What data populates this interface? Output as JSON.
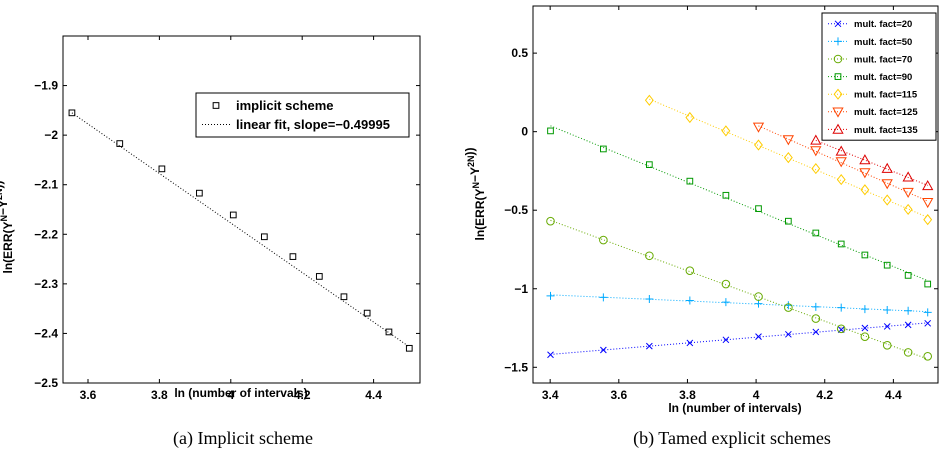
{
  "chart_data": [
    {
      "type": "scatter",
      "caption": "(a) Implicit scheme",
      "xlabel": "ln (number of intervals)",
      "ylabel": "ln(ERR(Y^N−Y^2N))",
      "xlim": [
        3.53,
        4.53
      ],
      "ylim": [
        -2.5,
        -1.8
      ],
      "xticks": [
        3.6,
        3.8,
        4.0,
        4.2,
        4.4
      ],
      "xtick_labels": [
        "3.6",
        "3.8",
        "4",
        "4.2",
        "4.4"
      ],
      "yticks": [
        -2.5,
        -2.4,
        -2.3,
        -2.2,
        -2.1,
        -2.0,
        -1.9
      ],
      "ytick_labels": [
        "−2.5",
        "−2.4",
        "−2.3",
        "−2.2",
        "−2.1",
        "−2",
        "−1.9"
      ],
      "grid": false,
      "legend_position": "top-right",
      "series": [
        {
          "name": "implicit scheme",
          "marker": "square",
          "color": "#000000",
          "line": false,
          "x": [
            3.555,
            3.689,
            3.807,
            3.912,
            4.007,
            4.094,
            4.174,
            4.248,
            4.317,
            4.382,
            4.443,
            4.5
          ],
          "y": [
            -1.955,
            -2.017,
            -2.068,
            -2.117,
            -2.161,
            -2.205,
            -2.245,
            -2.285,
            -2.326,
            -2.359,
            -2.397,
            -2.43
          ]
        },
        {
          "name": "linear fit, slope=−0.49995",
          "marker": "none",
          "color": "#000000",
          "line": "dotted",
          "x": [
            3.555,
            4.5
          ],
          "y": [
            -1.955,
            -2.427
          ]
        }
      ]
    },
    {
      "type": "scatter",
      "caption": "(b) Tamed explicit schemes",
      "xlabel": "ln (number of intervals)",
      "ylabel": "ln(ERR(Y^N−Y^2N))",
      "xlim": [
        3.35,
        4.53
      ],
      "ylim": [
        -1.6,
        0.8
      ],
      "xticks": [
        3.4,
        3.6,
        3.8,
        4.0,
        4.2,
        4.4
      ],
      "xtick_labels": [
        "3.4",
        "3.6",
        "3.8",
        "4",
        "4.2",
        "4.4"
      ],
      "yticks": [
        -1.5,
        -1.0,
        -0.5,
        0.0,
        0.5
      ],
      "ytick_labels": [
        "−1.5",
        "−1",
        "−0.5",
        "0",
        "0.5"
      ],
      "grid": false,
      "legend_position": "top-right",
      "series": [
        {
          "name": "mult. fact=20",
          "marker": "x",
          "color": "#0000ff",
          "x": [
            3.401,
            3.555,
            3.689,
            3.807,
            3.912,
            4.007,
            4.094,
            4.174,
            4.248,
            4.317,
            4.382,
            4.443,
            4.5
          ],
          "y": [
            -1.42,
            -1.39,
            -1.365,
            -1.345,
            -1.325,
            -1.305,
            -1.29,
            -1.275,
            -1.26,
            -1.25,
            -1.24,
            -1.23,
            -1.22
          ]
        },
        {
          "name": "mult. fact=50",
          "marker": "plus",
          "color": "#00aaff",
          "x": [
            3.401,
            3.555,
            3.689,
            3.807,
            3.912,
            4.007,
            4.094,
            4.174,
            4.248,
            4.317,
            4.382,
            4.443,
            4.5
          ],
          "y": [
            -1.045,
            -1.055,
            -1.065,
            -1.075,
            -1.085,
            -1.095,
            -1.105,
            -1.115,
            -1.12,
            -1.13,
            -1.135,
            -1.14,
            -1.15
          ]
        },
        {
          "name": "mult. fact=70",
          "marker": "circle",
          "color": "#66aa00",
          "x": [
            3.401,
            3.555,
            3.689,
            3.807,
            3.912,
            4.007,
            4.094,
            4.174,
            4.248,
            4.317,
            4.382,
            4.443,
            4.5
          ],
          "y": [
            -0.57,
            -0.69,
            -0.79,
            -0.885,
            -0.97,
            -1.05,
            -1.12,
            -1.19,
            -1.255,
            -1.305,
            -1.36,
            -1.405,
            -1.43
          ]
        },
        {
          "name": "mult. fact=90",
          "marker": "square",
          "color": "#009900",
          "x": [
            3.401,
            3.555,
            3.689,
            3.807,
            3.912,
            4.007,
            4.094,
            4.174,
            4.248,
            4.317,
            4.382,
            4.443,
            4.5
          ],
          "y": [
            0.005,
            -0.11,
            -0.21,
            -0.315,
            -0.405,
            -0.49,
            -0.57,
            -0.645,
            -0.715,
            -0.785,
            -0.85,
            -0.915,
            -0.97
          ]
        },
        {
          "name": "mult. fact=115",
          "marker": "diamond",
          "color": "#ffcc00",
          "x": [
            3.689,
            3.807,
            3.912,
            4.007,
            4.094,
            4.174,
            4.248,
            4.317,
            4.382,
            4.443,
            4.5
          ],
          "y": [
            0.2,
            0.09,
            0.005,
            -0.085,
            -0.165,
            -0.235,
            -0.305,
            -0.37,
            -0.435,
            -0.495,
            -0.56
          ]
        },
        {
          "name": "mult. fact=125",
          "marker": "triangle-down",
          "color": "#ff4400",
          "x": [
            4.007,
            4.094,
            4.174,
            4.248,
            4.317,
            4.382,
            4.443,
            4.5
          ],
          "y": [
            0.03,
            -0.05,
            -0.12,
            -0.19,
            -0.26,
            -0.33,
            -0.385,
            -0.45
          ]
        },
        {
          "name": "mult. fact=135",
          "marker": "triangle-up",
          "color": "#dd0000",
          "x": [
            4.174,
            4.248,
            4.317,
            4.382,
            4.443,
            4.5
          ],
          "y": [
            -0.055,
            -0.125,
            -0.18,
            -0.235,
            -0.29,
            -0.345
          ]
        }
      ]
    }
  ]
}
